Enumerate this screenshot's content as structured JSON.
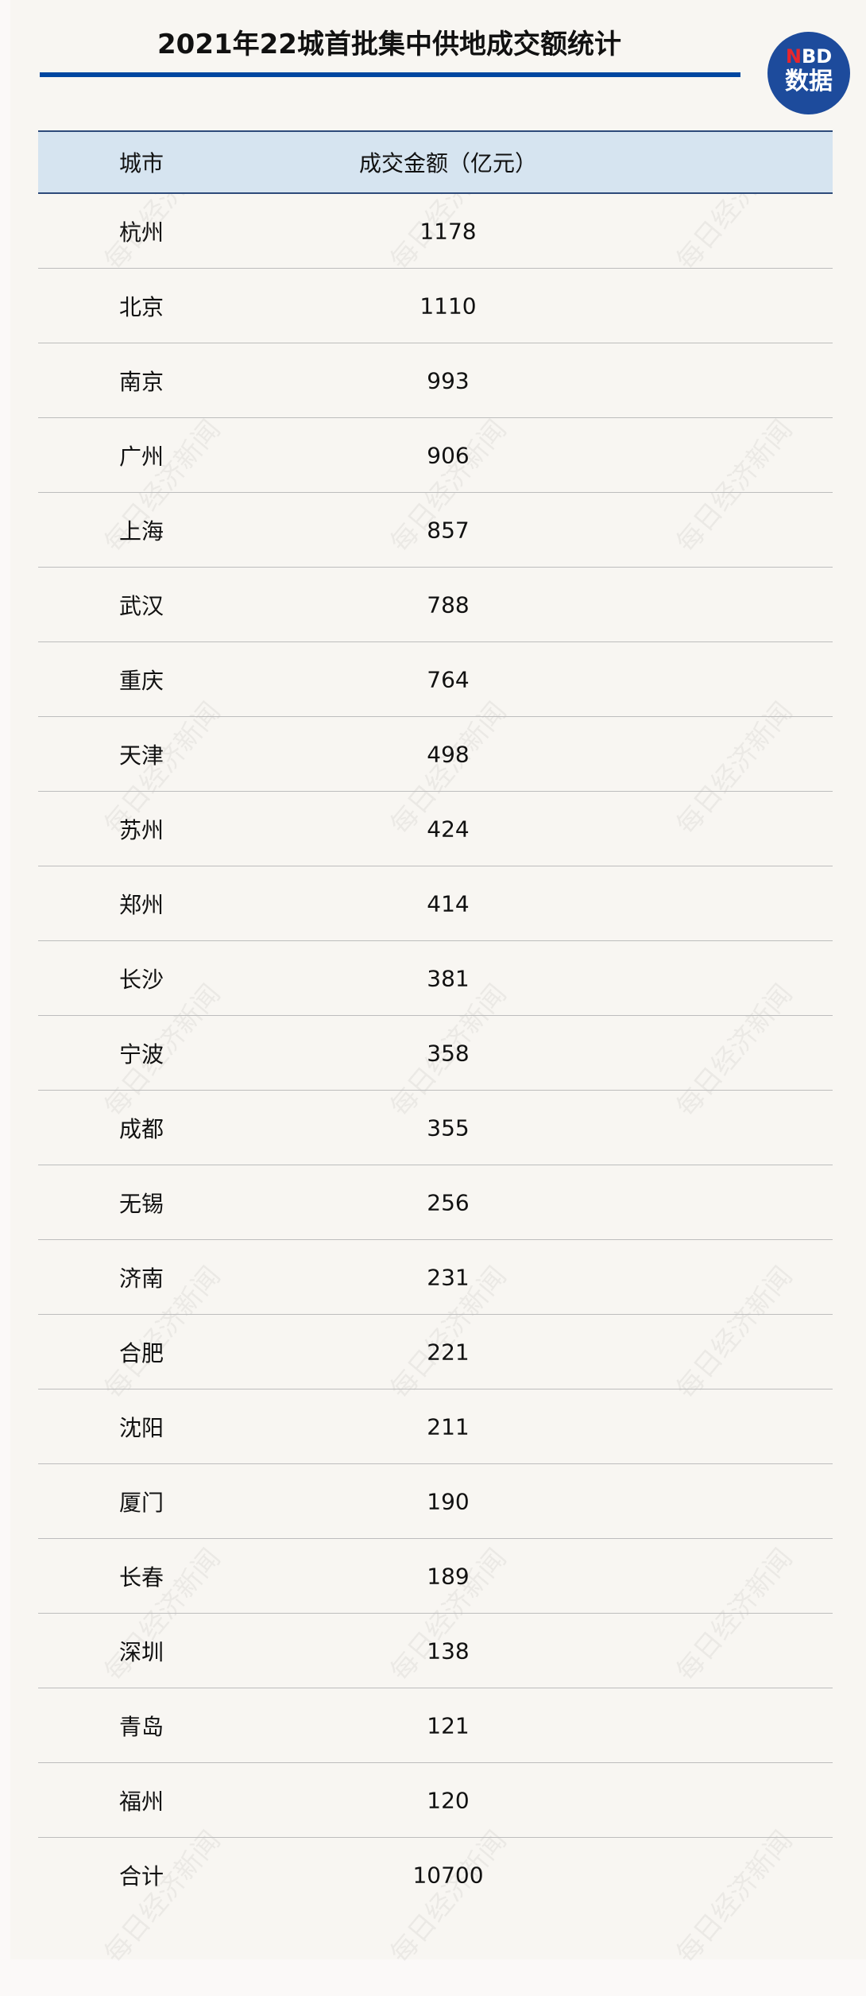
{
  "title": "2021年22城首批集中供地成交额统计",
  "logo": {
    "line1_n": "N",
    "line1_rest": "BD",
    "line2": "数据"
  },
  "watermark": "每日经济新闻",
  "colors": {
    "accent_blue": "#0047a0",
    "header_bg": "#d6e4f0",
    "logo_bg": "#1d4b9c",
    "logo_red": "#e8262d"
  },
  "table": {
    "headers": [
      "城市",
      "成交金额（亿元）"
    ],
    "rows": [
      [
        "杭州",
        "1178"
      ],
      [
        "北京",
        "1110"
      ],
      [
        "南京",
        "993"
      ],
      [
        "广州",
        "906"
      ],
      [
        "上海",
        "857"
      ],
      [
        "武汉",
        "788"
      ],
      [
        "重庆",
        "764"
      ],
      [
        "天津",
        "498"
      ],
      [
        "苏州",
        "424"
      ],
      [
        "郑州",
        "414"
      ],
      [
        "长沙",
        "381"
      ],
      [
        "宁波",
        "358"
      ],
      [
        "成都",
        "355"
      ],
      [
        "无锡",
        "256"
      ],
      [
        "济南",
        "231"
      ],
      [
        "合肥",
        "221"
      ],
      [
        "沈阳",
        "211"
      ],
      [
        "厦门",
        "190"
      ],
      [
        "长春",
        "189"
      ],
      [
        "深圳",
        "138"
      ],
      [
        "青岛",
        "121"
      ],
      [
        "福州",
        "120"
      ],
      [
        "合计",
        "10700"
      ]
    ]
  }
}
